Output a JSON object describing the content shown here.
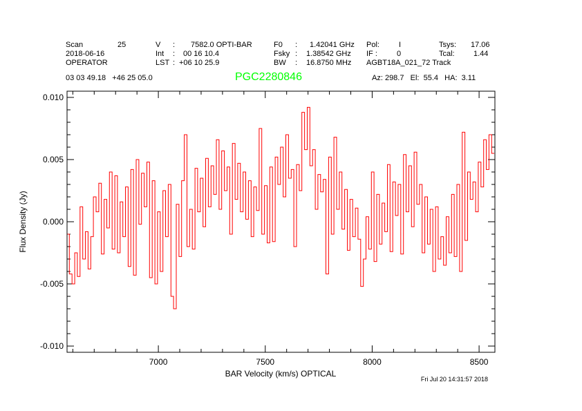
{
  "header": {
    "scan_label": "Scan",
    "scan": "25",
    "date": "2018-06-16",
    "observer": "OPERATOR",
    "v_label": "V",
    "v_value": "7582.0 OPTI-BAR",
    "int_label": "Int",
    "int_value": "00 16 10.4",
    "lst_label": "LST",
    "lst_value": "+06 10 25.9",
    "f0_label": "F0",
    "f0_value": "1.42041 GHz",
    "fsky_label": "Fsky",
    "fsky_value": "1.38542 GHz",
    "bw_label": "BW",
    "bw_value": "16.8750 MHz",
    "pol_label": "Pol:",
    "pol_value": "I",
    "if_label": "IF :",
    "if_value": "0",
    "project": "AGBT18A_021_72 Track",
    "tsys_label": "Tsys:",
    "tsys_value": "17.06",
    "tcal_label": "Tcal:",
    "tcal_value": "1.44",
    "coords": "03 03 49.18   +46 25 05.0",
    "source": "PGC2280846",
    "azel": "Az: 298.7   El:  55.4   HA:  3.11",
    "timestamp": "Fri Jul 20 14:31:57 2018"
  },
  "colors": {
    "source": "#00ff00",
    "series": "#ff0000",
    "axes": "#000000"
  },
  "chart_data": {
    "type": "line",
    "style": "histogram-step",
    "xlabel": "BAR Velocity (km/s) OPTICAL",
    "ylabel": "Flux Density (Jy)",
    "xlim": [
      6573,
      8574
    ],
    "ylim": [
      -0.0105,
      0.0105
    ],
    "xticks": [
      7000,
      7500,
      8000,
      8500
    ],
    "xtick_labels": [
      "7000",
      "7500",
      "8000",
      "8500"
    ],
    "yticks": [
      -0.01,
      -0.005,
      0.0,
      0.005,
      0.01
    ],
    "ytick_labels": [
      "-0.010",
      "-0.005",
      "0.000",
      "0.005",
      "0.010"
    ],
    "grid": false,
    "x_start": 6577.5,
    "x_step": 12.5,
    "y": [
      -0.001,
      -0.0042,
      -0.005,
      -0.0025,
      -0.0044,
      0.0012,
      -0.003,
      -0.0008,
      -0.0038,
      -0.0012,
      0.002,
      0.0008,
      0.0031,
      -0.0026,
      0.0018,
      -0.0005,
      0.004,
      -0.0022,
      0.0037,
      -0.0025,
      0.0016,
      -0.0012,
      0.0028,
      -0.0036,
      0.0042,
      -0.0043,
      0.005,
      -0.0002,
      0.0039,
      0.0012,
      0.0048,
      -0.0045,
      0.0033,
      -0.005,
      0.0008,
      -0.004,
      0.0025,
      -0.0012,
      0.003,
      -0.006,
      -0.007,
      0.0014,
      -0.0028,
      0.0033,
      0.007,
      -0.002,
      0.001,
      -0.0022,
      0.0043,
      0.0008,
      0.0035,
      -0.0004,
      0.0051,
      0.0012,
      0.0045,
      0.0022,
      0.0066,
      0.001,
      0.0057,
      0.0025,
      0.0044,
      -0.001,
      0.0063,
      0.0018,
      0.0047,
      0.0008,
      0.004,
      0.0002,
      0.0033,
      -0.0012,
      0.0028,
      0.0009,
      0.0075,
      -0.001,
      0.0029,
      -0.0017,
      0.0044,
      -0.0016,
      0.0052,
      0.003,
      0.006,
      0.002,
      0.007,
      0.0035,
      0.0042,
      -0.002,
      0.0046,
      0.0025,
      0.0088,
      0.0058,
      0.0092,
      0.0045,
      0.0058,
      0.001,
      0.0038,
      0.0024,
      0.0034,
      -0.0042,
      0.0052,
      -0.001,
      0.0068,
      0.001,
      0.004,
      -0.0006,
      0.0026,
      -0.0023,
      0.0018,
      -0.0012,
      0.0011,
      -0.0014,
      -0.0052,
      -0.003,
      0.0004,
      -0.0022,
      0.004,
      -0.0032,
      0.0022,
      -0.0018,
      0.0015,
      -0.0008,
      0.0046,
      -0.0024,
      0.0032,
      0.0005,
      0.003,
      -0.0026,
      0.0054,
      0.0008,
      0.0045,
      -0.0004,
      0.0056,
      0.0014,
      0.003,
      -0.0025,
      0.002,
      -0.0018,
      0.001,
      -0.004,
      0.0012,
      -0.003,
      -0.0012,
      -0.0035,
      0.0004,
      -0.0025,
      0.0022,
      -0.0028,
      0.003,
      -0.004,
      0.0072,
      -0.0015,
      0.004,
      0.0018,
      0.0032,
      0.0008,
      0.0048,
      0.0028,
      0.0066,
      0.0042,
      0.007,
      0.0055
    ]
  }
}
